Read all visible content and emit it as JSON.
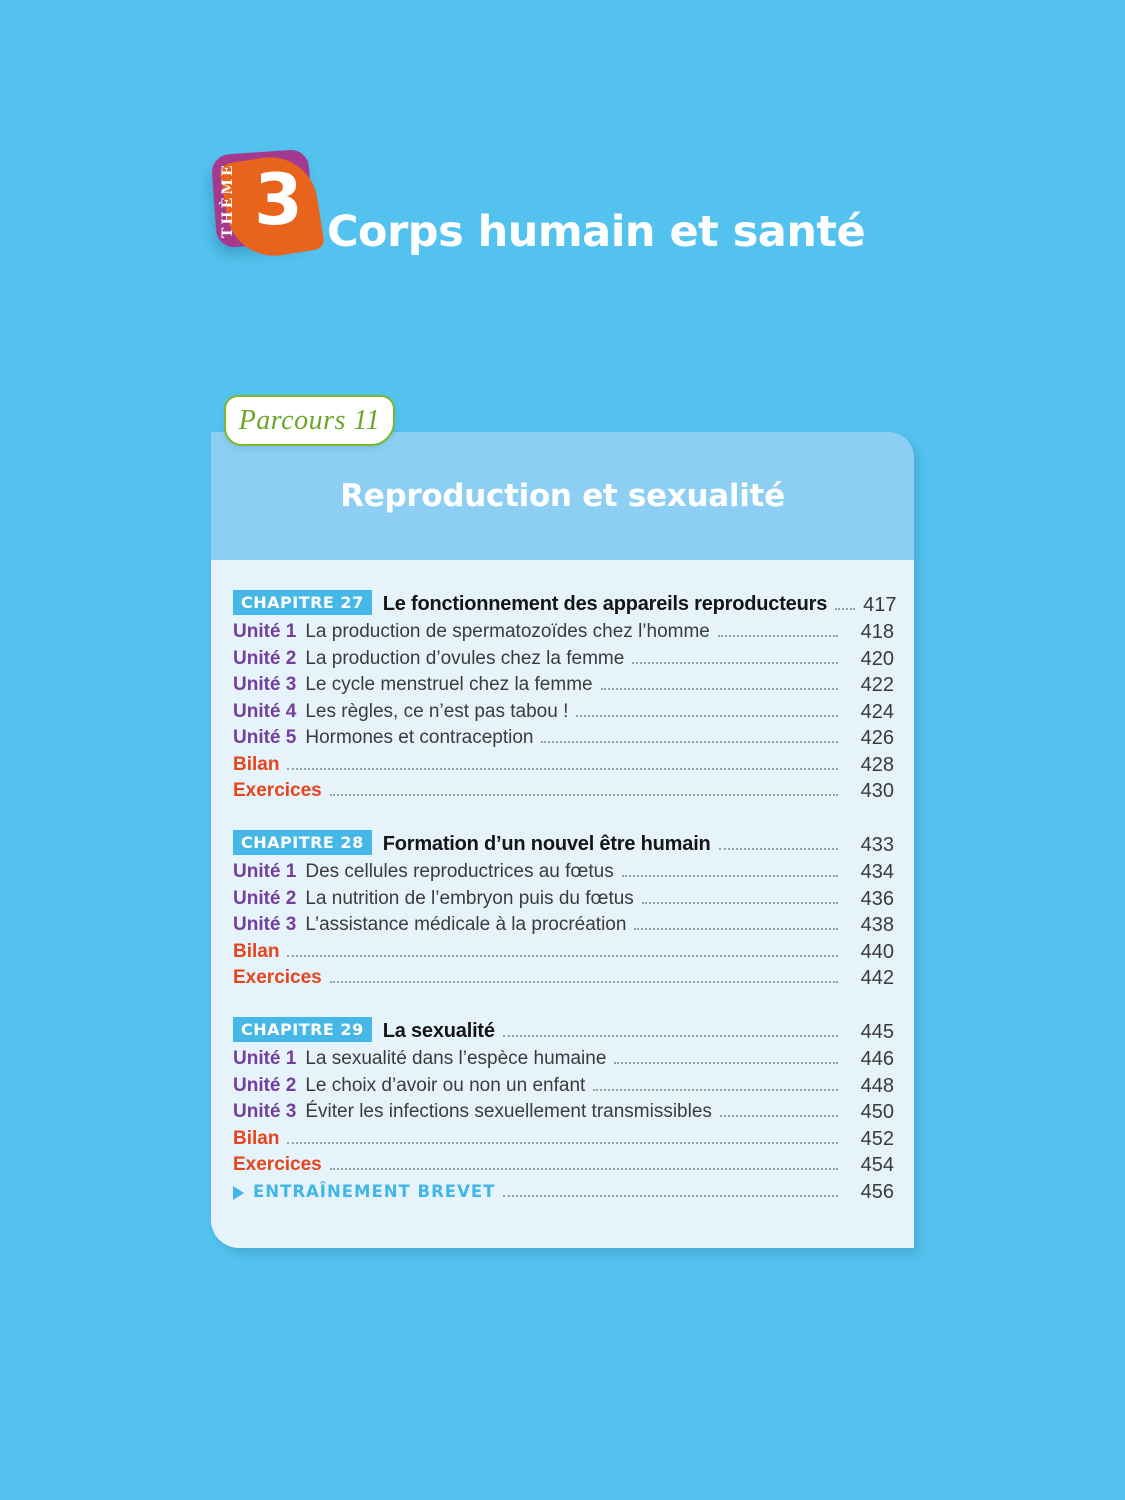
{
  "theme": {
    "label": "THÈME",
    "number": "3",
    "title": "Corps humain et santé"
  },
  "parcours": {
    "label": "Parcours 11",
    "title": "Reproduction et sexualité"
  },
  "colors": {
    "background_blue": "#54c2ef",
    "card_header_blue": "#8ccff3",
    "card_body_blue": "#e6f3fb",
    "chapter_badge_blue": "#45b8e8",
    "unit_purple": "#743f9b",
    "bilan_exercices_orange": "#e8441c",
    "brevet_blue": "#41b6e8",
    "parcours_green": "#6ba629",
    "theme_badge_purple": "#a43a8e",
    "theme_badge_orange": "#e8641c"
  },
  "chapters": [
    {
      "badge": "CHAPITRE 27",
      "title": "Le fonctionnement des appareils reproducteurs",
      "page": "417",
      "items": [
        {
          "type": "unit",
          "label": "Unité 1",
          "title": "La production de spermatozoïdes chez l’homme",
          "page": "418"
        },
        {
          "type": "unit",
          "label": "Unité 2",
          "title": "La production d’ovules chez la femme",
          "page": "420"
        },
        {
          "type": "unit",
          "label": "Unité 3",
          "title": "Le cycle menstruel chez la femme",
          "page": "422"
        },
        {
          "type": "unit",
          "label": "Unité 4",
          "title": "Les règles, ce n’est pas tabou !",
          "page": "424"
        },
        {
          "type": "unit",
          "label": "Unité 5",
          "title": "Hormones et contraception",
          "page": "426"
        },
        {
          "type": "orange",
          "label": "Bilan",
          "page": "428"
        },
        {
          "type": "orange",
          "label": "Exercices",
          "page": "430"
        }
      ]
    },
    {
      "badge": "CHAPITRE 28",
      "title": "Formation d’un nouvel être humain",
      "page": "433",
      "items": [
        {
          "type": "unit",
          "label": "Unité 1",
          "title": "Des cellules reproductrices au fœtus",
          "page": "434"
        },
        {
          "type": "unit",
          "label": "Unité 2",
          "title": "La nutrition de l’embryon puis du fœtus",
          "page": "436"
        },
        {
          "type": "unit",
          "label": "Unité 3",
          "title": "L’assistance médicale à la procréation",
          "page": "438"
        },
        {
          "type": "orange",
          "label": "Bilan",
          "page": "440"
        },
        {
          "type": "orange",
          "label": "Exercices",
          "page": "442"
        }
      ]
    },
    {
      "badge": "CHAPITRE 29",
      "title": "La sexualité",
      "page": "445",
      "items": [
        {
          "type": "unit",
          "label": "Unité 1",
          "title": "La sexualité dans l’espèce humaine",
          "page": "446"
        },
        {
          "type": "unit",
          "label": "Unité 2",
          "title": "Le choix d’avoir ou non un enfant",
          "page": "448"
        },
        {
          "type": "unit",
          "label": "Unité 3",
          "title": "Éviter les infections sexuellement transmissibles",
          "page": "450"
        },
        {
          "type": "orange",
          "label": "Bilan",
          "page": "452"
        },
        {
          "type": "orange",
          "label": "Exercices",
          "page": "454"
        },
        {
          "type": "brevet",
          "label": "ENTRAÎNEMENT BREVET",
          "page": "456"
        }
      ]
    }
  ]
}
